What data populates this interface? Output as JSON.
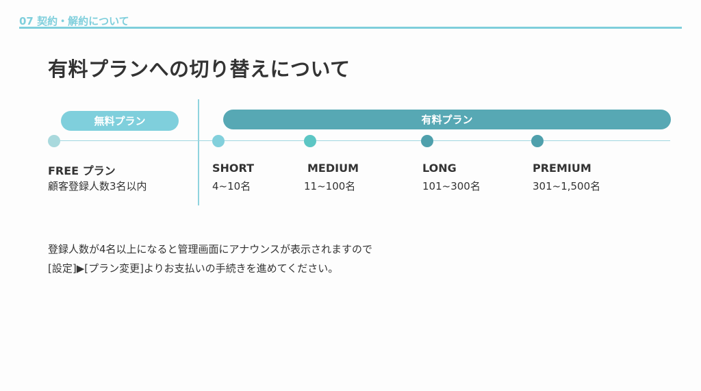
{
  "header": {
    "section": "07 契約・解約について",
    "title": "有料プランへの切り替えについて"
  },
  "pills": {
    "free": "無料プラン",
    "paid": "有料プラン"
  },
  "colors": {
    "accent_light": "#7fcfdc",
    "accent_dark": "#57a8b4",
    "dot_free": "#a9d9dd",
    "dot_short": "#82d0dc",
    "dot_medium": "#5cc6c4",
    "dot_long": "#4fa0ac",
    "dot_premium": "#4fa0ac"
  },
  "plans": [
    {
      "name": "FREE プラン",
      "desc": "顧客登録人数3名以内"
    },
    {
      "name": "SHORT",
      "desc": "4~10名"
    },
    {
      "name": "MEDIUM",
      "desc": "11~100名"
    },
    {
      "name": "LONG",
      "desc": "101~300名"
    },
    {
      "name": "PREMIUM",
      "desc": "301~1,500名"
    }
  ],
  "note": {
    "line1": "登録人数が4名以上になると管理画面にアナウンスが表示されますので",
    "line2": "[設定]▶[プラン変更]よりお支払いの手続きを進めてください。"
  }
}
